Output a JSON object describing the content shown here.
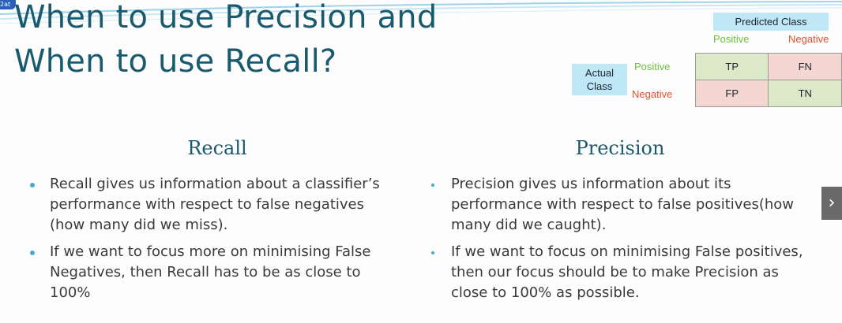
{
  "slide": {
    "title": "When to use Precision and When to use Recall?",
    "corner_badge": "2at",
    "confusion_matrix": {
      "predicted_header": "Predicted Class",
      "predicted_positive": "Positive",
      "predicted_negative": "Negative",
      "actual_header": "Actual Class",
      "actual_positive": "Positive",
      "actual_negative": "Negative",
      "cells": [
        "TP",
        "FN",
        "FP",
        "TN"
      ]
    },
    "recall": {
      "heading": "Recall",
      "bullets": [
        "Recall gives us information about a classifier’s performance with respect to false negatives (how many did we miss).",
        "If we want to focus more on minimising False Negatives, then Recall has to be as close to 100%"
      ]
    },
    "precision": {
      "heading": "Precision",
      "bullets": [
        "Precision gives us information about its performance with respect to false positives(how many did we caught).",
        "If we want to focus on minimising False positives, then our focus should be to make Precision as close to 100% as possible."
      ]
    },
    "next_button": "›"
  },
  "colors": {
    "title": "#1a5a6e",
    "header_fill": "#bfe7f5",
    "positive": "#6bbf3a",
    "negative": "#e05030",
    "cell_green": "#dbe9c9",
    "cell_pink": "#f4d6d3",
    "bullet": "#4aa8c8"
  }
}
